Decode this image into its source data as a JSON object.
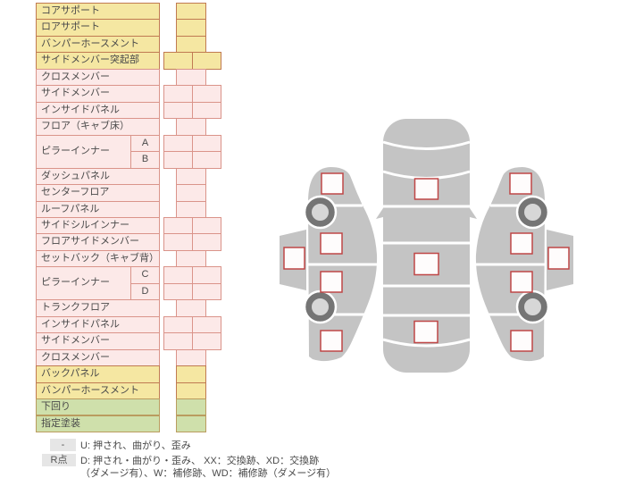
{
  "table": {
    "rows": [
      {
        "label": "コアサポート",
        "color": "yellow",
        "cells": "single"
      },
      {
        "label": "ロアサポート",
        "color": "yellow",
        "cells": "single"
      },
      {
        "label": "バンパーホースメント",
        "color": "yellow",
        "cells": "single"
      },
      {
        "label": "サイドメンバー突起部",
        "color": "yellow",
        "cells": "double"
      },
      {
        "label": "クロスメンバー",
        "color": "pink",
        "cells": "single"
      },
      {
        "label": "サイドメンバー",
        "color": "pink",
        "cells": "double"
      },
      {
        "label": "インサイドパネル",
        "color": "pink",
        "cells": "double"
      },
      {
        "label": "フロア（キャブ床）",
        "color": "pink",
        "cells": "single"
      },
      {
        "label": "ピラーインナー",
        "color": "pink",
        "cells": "double",
        "sub": [
          "A",
          "B"
        ]
      },
      {
        "label": "ダッシュパネル",
        "color": "pink",
        "cells": "single"
      },
      {
        "label": "センターフロア",
        "color": "pink",
        "cells": "single"
      },
      {
        "label": "ルーフパネル",
        "color": "pink",
        "cells": "single"
      },
      {
        "label": "サイドシルインナー",
        "color": "pink",
        "cells": "double"
      },
      {
        "label": "フロアサイドメンバー",
        "color": "pink",
        "cells": "double"
      },
      {
        "label": "セットバック（キャブ背）",
        "color": "pink",
        "cells": "single"
      },
      {
        "label": "ピラーインナー",
        "color": "pink",
        "cells": "double",
        "sub": [
          "C",
          "D"
        ]
      },
      {
        "label": "トランクフロア",
        "color": "pink",
        "cells": "single"
      },
      {
        "label": "インサイドパネル",
        "color": "pink",
        "cells": "double"
      },
      {
        "label": "サイドメンバー",
        "color": "pink",
        "cells": "double"
      },
      {
        "label": "クロスメンバー",
        "color": "pink",
        "cells": "single"
      },
      {
        "label": "バックパネル",
        "color": "yellow",
        "cells": "single"
      },
      {
        "label": "バンパーホースメント",
        "color": "yellow",
        "cells": "single"
      },
      {
        "label": "下回り",
        "color": "green",
        "cells": "single"
      },
      {
        "label": "指定塗装",
        "color": "green",
        "cells": "single"
      }
    ]
  },
  "legend": {
    "row1_badge": "-",
    "row1_text": "U: 押され、曲がり、歪み",
    "row2_badge": "R点",
    "row2_text": "D: 押され・曲がり・歪み、 XX：交換跡、XD：交換跡",
    "row2_text_cont": "（ダメージ有）、W：補修跡、WD：補修跡（ダメージ有）"
  },
  "colors": {
    "yellow_bg": "#f5e7a2",
    "yellow_border": "#c07a52",
    "pink_bg": "#fce9e8",
    "pink_border": "#da948a",
    "green_bg": "#cfe0ab",
    "green_border": "#ba9c5f",
    "car_body": "#c4c4c4",
    "marker_border": "#bf4646",
    "wheel_ring": "#757575",
    "legend_badge_bg": "#e6e6e6"
  },
  "diagram": {
    "top_markers": [
      [
        464.5,
        200,
        26,
        23
      ],
      [
        464,
        283.5,
        27,
        24
      ],
      [
        464,
        359.5,
        26,
        24
      ]
    ],
    "side_markers": [
      [
        360,
        194,
        24,
        23
      ],
      [
        359,
        261,
        24,
        23
      ],
      [
        359,
        304,
        24,
        23
      ],
      [
        359,
        370,
        24,
        23
      ],
      [
        318,
        277,
        23,
        24
      ]
    ]
  }
}
